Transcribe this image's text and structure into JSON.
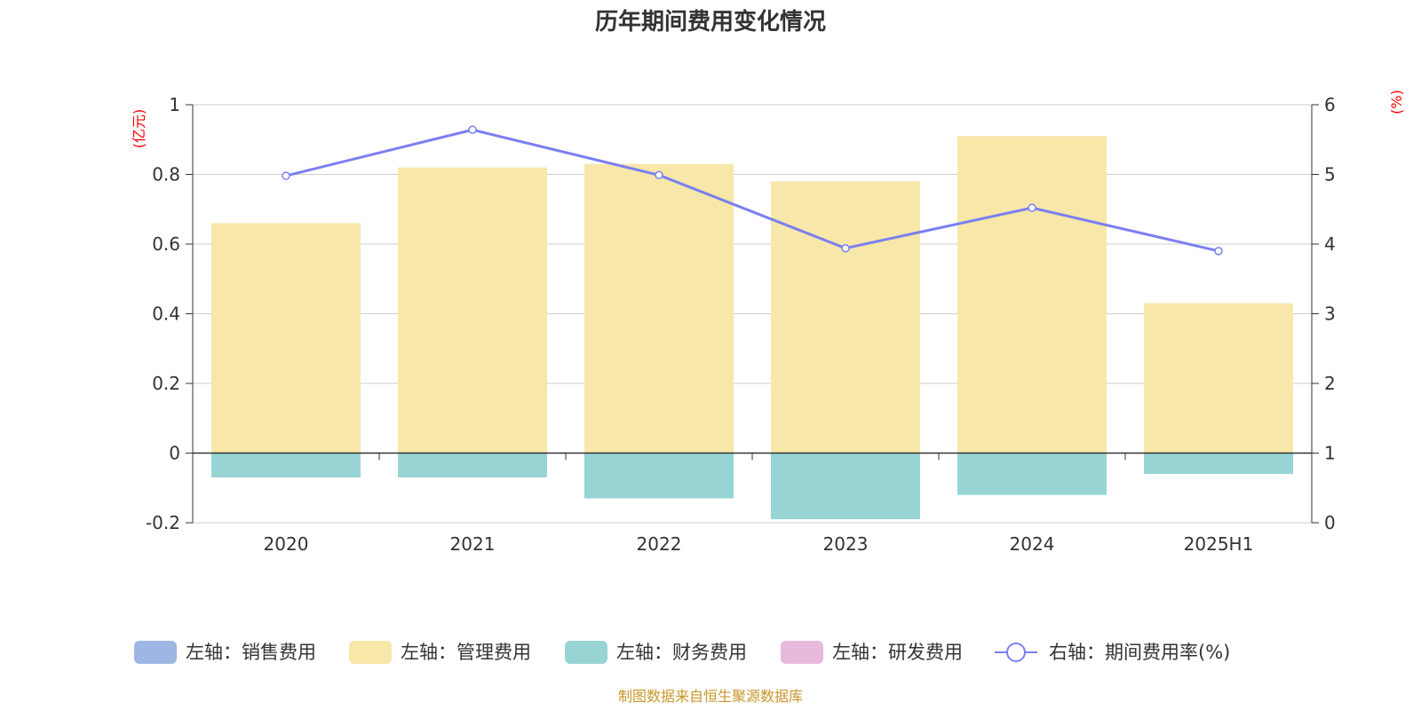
{
  "chart_data": {
    "type": "bar",
    "title": "历年期间费用变化情况",
    "categories": [
      "2020",
      "2021",
      "2022",
      "2023",
      "2024",
      "2025H1"
    ],
    "left_axis": {
      "unit": "(亿元)",
      "ylim": [
        -0.2,
        1.0
      ],
      "ticks": [
        -0.2,
        0,
        0.2,
        0.4,
        0.6,
        0.8,
        1.0
      ],
      "tick_labels": [
        "-0.2",
        "0",
        "0.2",
        "0.4",
        "0.6",
        "0.8",
        "1"
      ]
    },
    "right_axis": {
      "unit": "(%)",
      "ylim": [
        0,
        6
      ],
      "ticks": [
        0,
        1,
        2,
        3,
        4,
        5,
        6
      ],
      "tick_labels": [
        "0",
        "1",
        "2",
        "3",
        "4",
        "5",
        "6"
      ]
    },
    "series": [
      {
        "name": "左轴：销售费用",
        "axis": "left",
        "kind": "bar",
        "color": "#9db6e3",
        "values": [
          0,
          0,
          0,
          0,
          0,
          0
        ]
      },
      {
        "name": "左轴：管理费用",
        "axis": "left",
        "kind": "bar",
        "color": "#f7e7a9",
        "values": [
          0.66,
          0.82,
          0.83,
          0.78,
          0.91,
          0.43
        ]
      },
      {
        "name": "左轴：财务费用",
        "axis": "left",
        "kind": "bar",
        "color": "#98d4d4",
        "values": [
          -0.07,
          -0.07,
          -0.13,
          -0.19,
          -0.12,
          -0.06
        ]
      },
      {
        "name": "左轴：研发费用",
        "axis": "left",
        "kind": "bar",
        "color": "#e8b9da",
        "values": [
          0,
          0,
          0,
          0,
          0,
          0
        ]
      },
      {
        "name": "右轴：期间费用率(%)",
        "axis": "right",
        "kind": "line",
        "color": "#7b7ff0",
        "values": [
          4.98,
          5.64,
          4.99,
          3.94,
          4.52,
          3.9
        ]
      }
    ],
    "legend_position": "bottom",
    "source": "制图数据来自恒生聚源数据库"
  }
}
